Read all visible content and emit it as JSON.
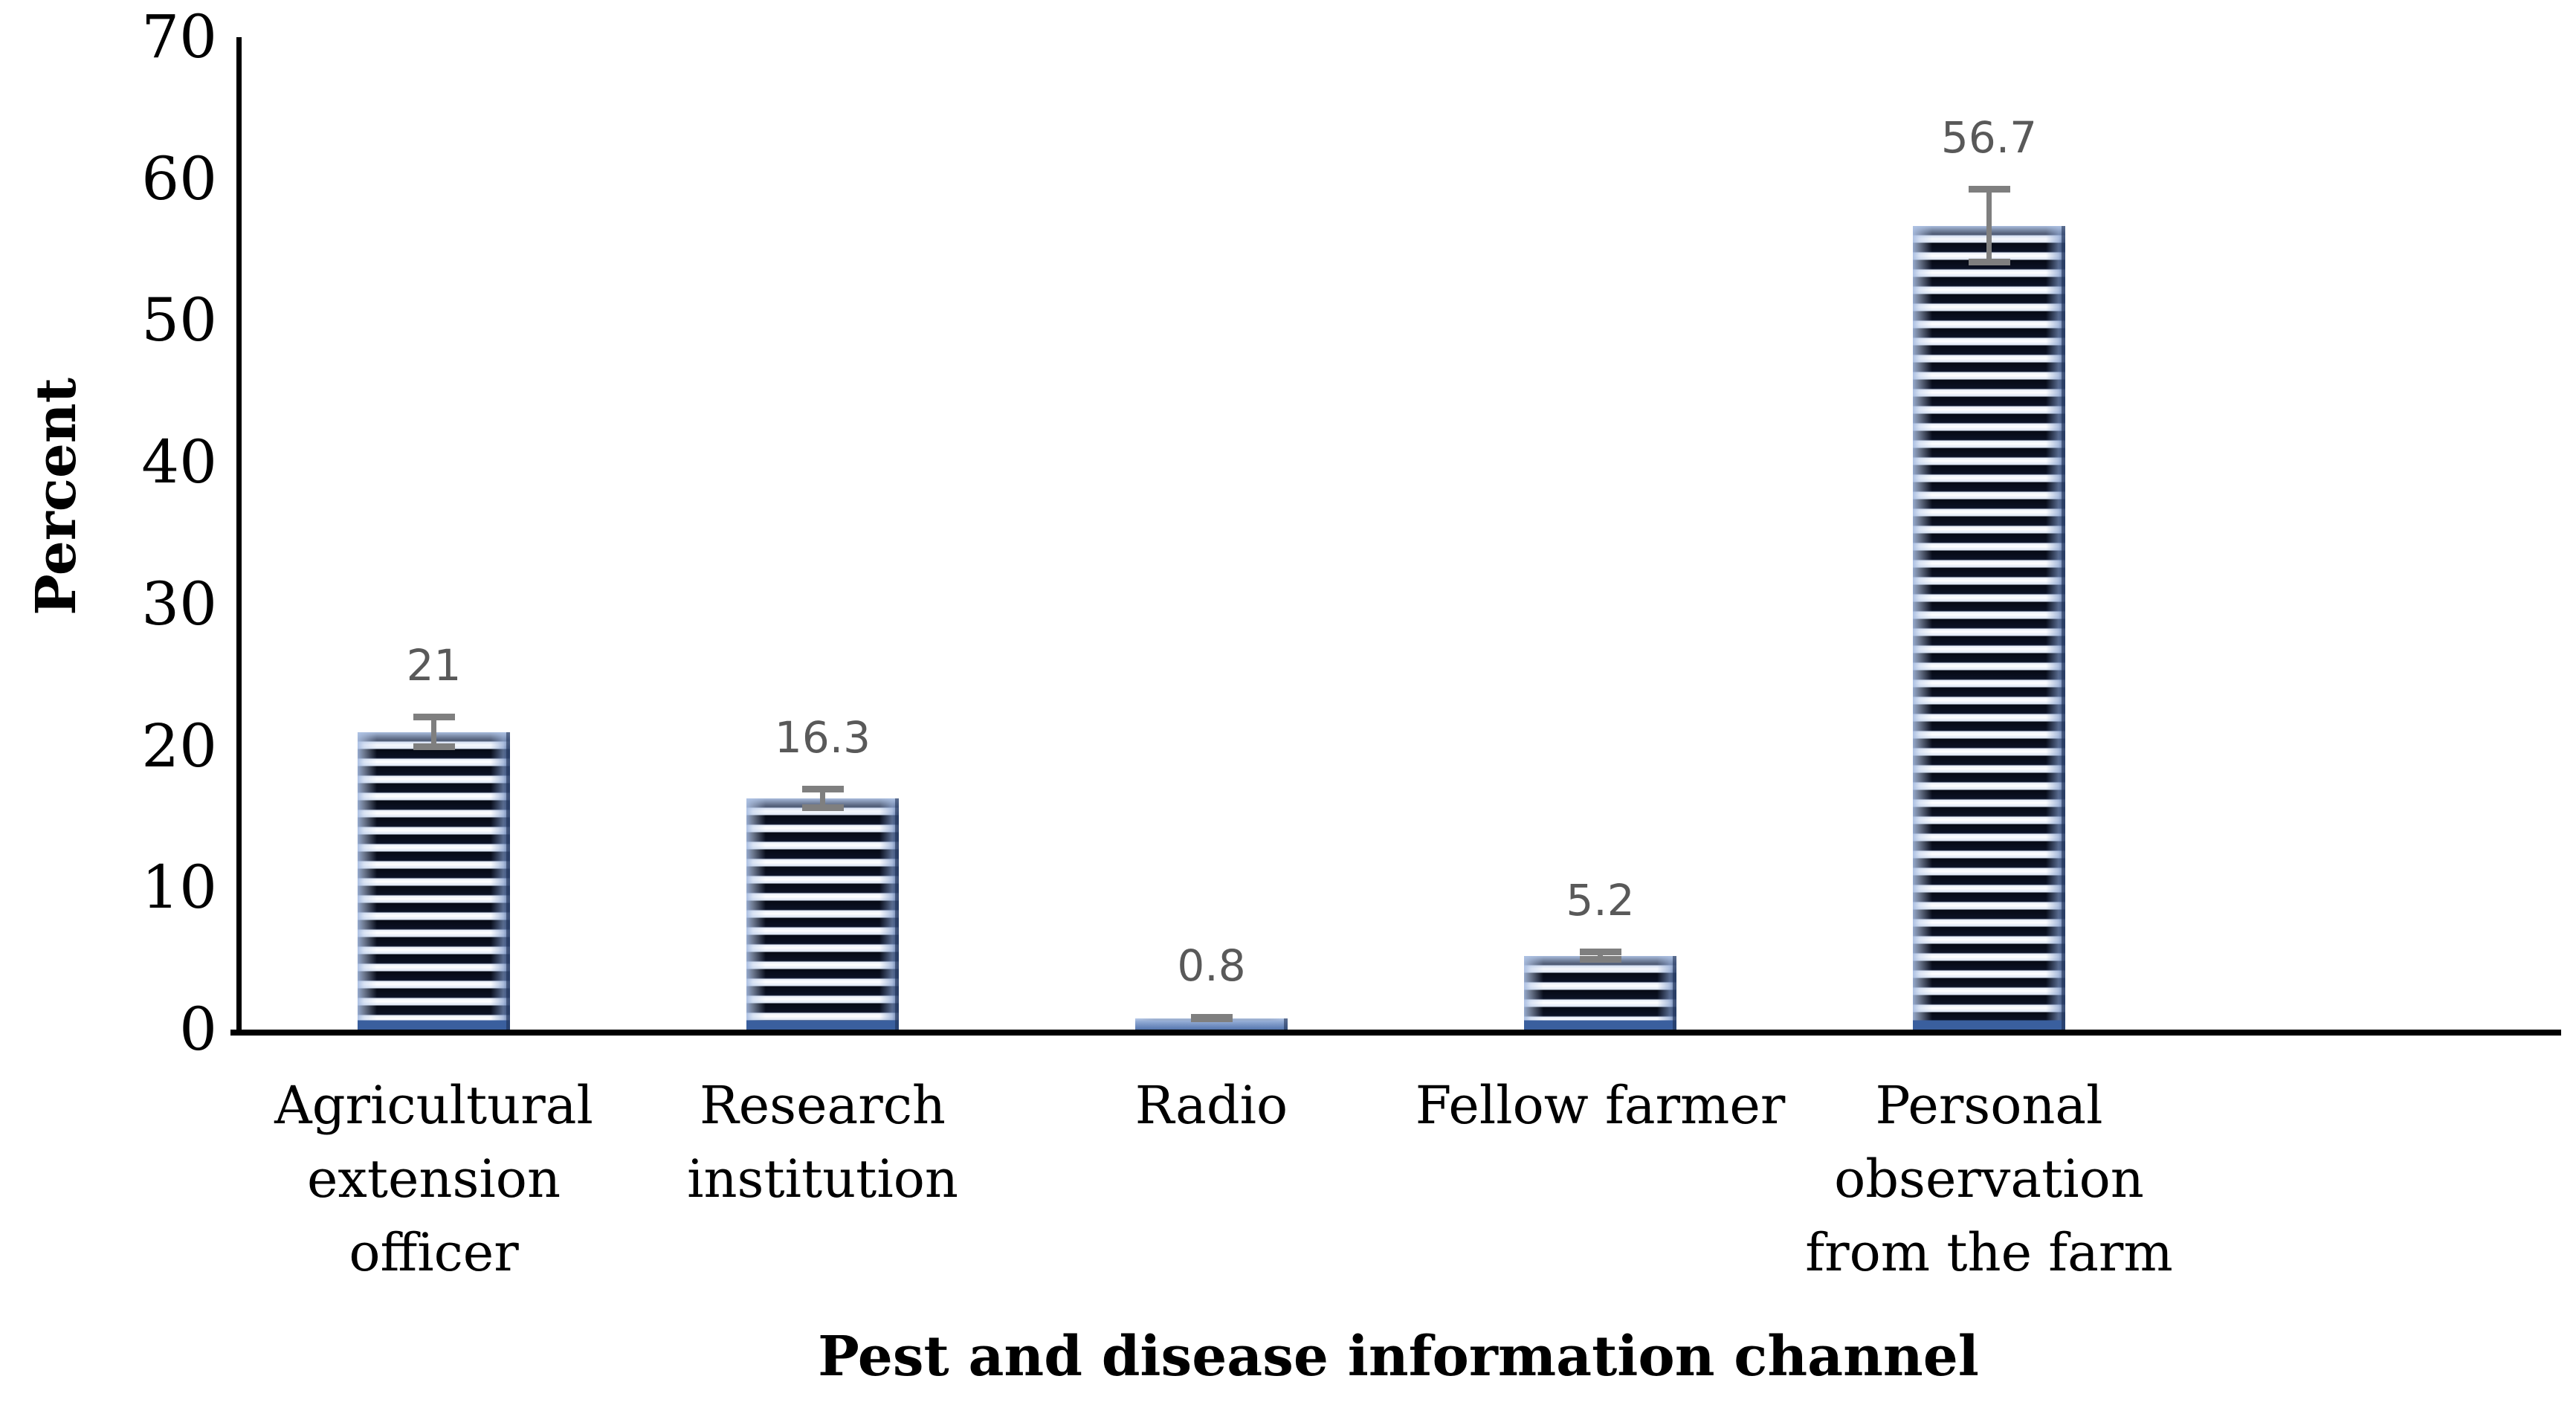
{
  "chart_data": {
    "type": "bar",
    "title": "",
    "categories": [
      "Agricultural extension officer",
      "Research institution",
      "Radio",
      "Fellow farmer",
      "Personal observation from the farm"
    ],
    "category_label_lines": [
      [
        "Agricultural",
        "extension",
        "officer"
      ],
      [
        "Research",
        "institution"
      ],
      [
        "Radio"
      ],
      [
        "Fellow farmer"
      ],
      [
        "Personal",
        "observation",
        "from the farm"
      ]
    ],
    "values": [
      21,
      16.3,
      0.8,
      5.2,
      56.7
    ],
    "data_labels": [
      "21",
      "16.3",
      "0.8",
      "5.2",
      "56.7"
    ],
    "error_bars": [
      1.3,
      0.9,
      0.3,
      0.5,
      2.8
    ],
    "xlabel": "Pest and disease information channel",
    "ylabel": "Percent",
    "ylim": [
      0,
      70
    ],
    "yticks": [
      0,
      10,
      20,
      30,
      40,
      50,
      60,
      70
    ],
    "grid": false,
    "legend_position": "none",
    "bar_fill_style": "black horizontal stripes on white with light-blue edge glow (pattern fill)",
    "colors": {
      "stripe_dark": "#060a15",
      "stripe_light": "#ffffff",
      "bar_edge_blue": "#3a5f9e",
      "bar_glow_blue": "#b1c5e7",
      "error_bar": "#7f7f7f",
      "data_label": "#595959",
      "axis": "#000000",
      "background": "#ffffff"
    }
  }
}
